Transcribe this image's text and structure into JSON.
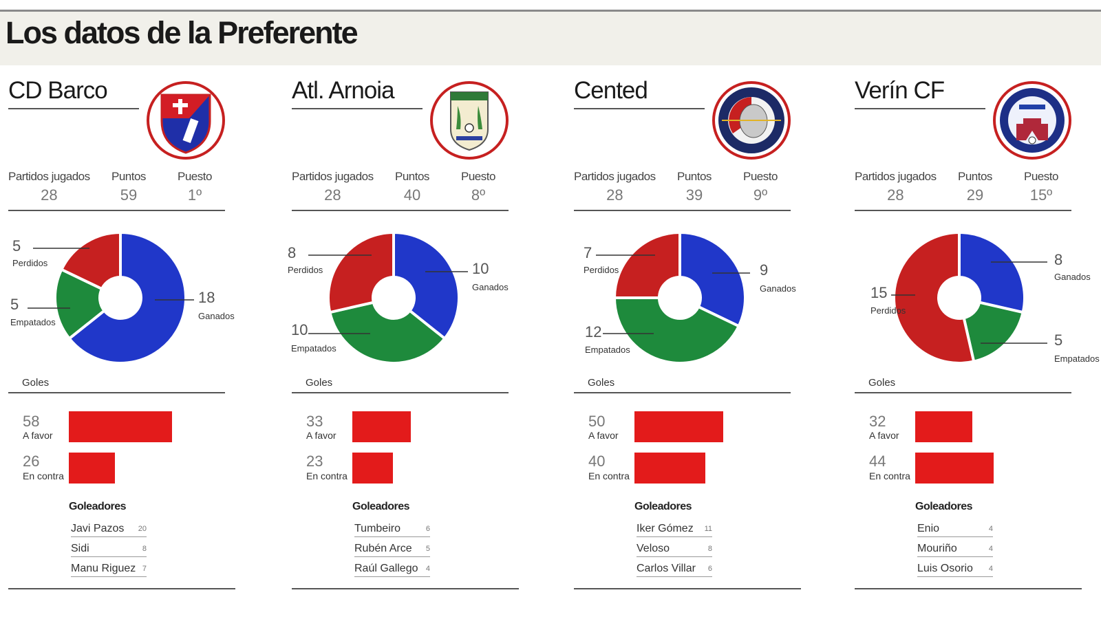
{
  "title": "Los datos de la Preferente",
  "labels": {
    "partidos": "Partidos jugados",
    "puntos": "Puntos",
    "puesto": "Puesto",
    "goles": "Goles",
    "a_favor": "A favor",
    "en_contra": "En contra",
    "goleadores": "Goleadores"
  },
  "colors": {
    "ganados": "#2037c9",
    "empatados": "#1e8a3c",
    "perdidos": "#c62020",
    "bar": "#e31b1b"
  },
  "chart_data": [
    {
      "team": "CD Barco",
      "crest_icon": "cd-barco-crest-icon",
      "stats": {
        "partidos": "28",
        "puntos": "59",
        "puesto": "1º"
      },
      "results": {
        "type": "pie",
        "slices": [
          {
            "label": "Ganados",
            "value": 18
          },
          {
            "label": "Empatados",
            "value": 5
          },
          {
            "label": "Perdidos",
            "value": 5
          }
        ]
      },
      "goals": {
        "type": "bar",
        "a_favor": 58,
        "en_contra": 26
      },
      "scorers": [
        {
          "name": "Javi Pazos",
          "goals": "20"
        },
        {
          "name": "Sidi",
          "goals": "8"
        },
        {
          "name": "Manu Riguez",
          "goals": "7"
        }
      ]
    },
    {
      "team": "Atl. Arnoia",
      "crest_icon": "atl-arnoia-crest-icon",
      "stats": {
        "partidos": "28",
        "puntos": "40",
        "puesto": "8º"
      },
      "results": {
        "type": "pie",
        "slices": [
          {
            "label": "Ganados",
            "value": 10
          },
          {
            "label": "Empatados",
            "value": 10
          },
          {
            "label": "Perdidos",
            "value": 8
          }
        ]
      },
      "goals": {
        "type": "bar",
        "a_favor": 33,
        "en_contra": 23
      },
      "scorers": [
        {
          "name": "Tumbeiro",
          "goals": "6"
        },
        {
          "name": "Rubén Arce",
          "goals": "5"
        },
        {
          "name": "Raúl Gallego",
          "goals": "4"
        }
      ]
    },
    {
      "team": "Cented",
      "crest_icon": "cented-crest-icon",
      "stats": {
        "partidos": "28",
        "puntos": "39",
        "puesto": "9º"
      },
      "results": {
        "type": "pie",
        "slices": [
          {
            "label": "Ganados",
            "value": 9
          },
          {
            "label": "Empatados",
            "value": 12
          },
          {
            "label": "Perdidos",
            "value": 7
          }
        ]
      },
      "goals": {
        "type": "bar",
        "a_favor": 50,
        "en_contra": 40
      },
      "scorers": [
        {
          "name": "Iker Gómez",
          "goals": "11"
        },
        {
          "name": "Veloso",
          "goals": "8"
        },
        {
          "name": "Carlos Villar",
          "goals": "6"
        }
      ]
    },
    {
      "team": "Verín CF",
      "crest_icon": "verin-cf-crest-icon",
      "stats": {
        "partidos": "28",
        "puntos": "29",
        "puesto": "15º"
      },
      "results": {
        "type": "pie",
        "slices": [
          {
            "label": "Ganados",
            "value": 8
          },
          {
            "label": "Empatados",
            "value": 5
          },
          {
            "label": "Perdidos",
            "value": 15
          }
        ]
      },
      "goals": {
        "type": "bar",
        "a_favor": 32,
        "en_contra": 44
      },
      "scorers": [
        {
          "name": "Enio",
          "goals": "4"
        },
        {
          "name": "Mouriño",
          "goals": "4"
        },
        {
          "name": "Luis Osorio",
          "goals": "4"
        }
      ]
    }
  ]
}
